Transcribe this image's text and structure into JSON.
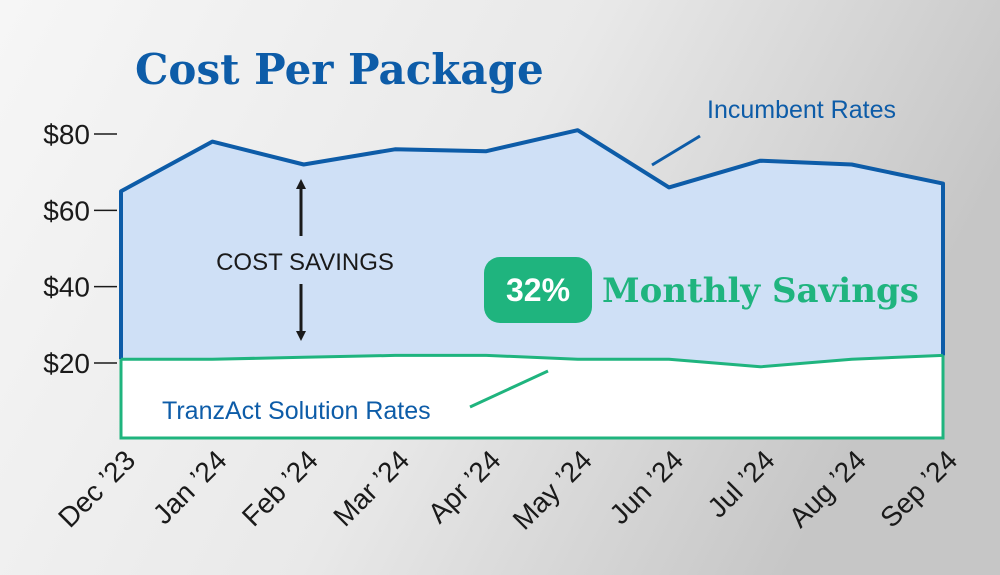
{
  "chart_data": {
    "type": "area",
    "title": "Cost Per Package",
    "categories": [
      "Dec ’23",
      "Jan ’24",
      "Feb ’24",
      "Mar ’24",
      "Apr ’24",
      "May ’24",
      "Jun ’24",
      "Jul ’24",
      "Aug ’24",
      "Sep ’24"
    ],
    "series": [
      {
        "name": "Incumbent Rates",
        "color": "#0d5ca8",
        "fill": "#cfe0f6",
        "values": [
          65,
          78,
          72,
          76,
          75.5,
          81,
          66,
          73,
          72,
          67
        ]
      },
      {
        "name": "TranzAct Solution Rates",
        "color": "#1fb47e",
        "fill": "#ffffff",
        "values": [
          21,
          21,
          21.5,
          22,
          22,
          21,
          21,
          19,
          21,
          22
        ]
      }
    ],
    "y_ticks": [
      "$80",
      "$60",
      "$40",
      "$20"
    ],
    "y_tick_values": [
      80,
      60,
      40,
      20
    ],
    "ylim": [
      0,
      80
    ],
    "annotations": {
      "cost_savings": "COST SAVINGS",
      "savings_percent": "32%",
      "monthly_savings": "Monthly Savings"
    }
  },
  "colors": {
    "background_light": "#f4f4f4",
    "background_dark": "#c9c9c9",
    "badge": "#1fb47e",
    "arrow": "#1a1a1a"
  }
}
